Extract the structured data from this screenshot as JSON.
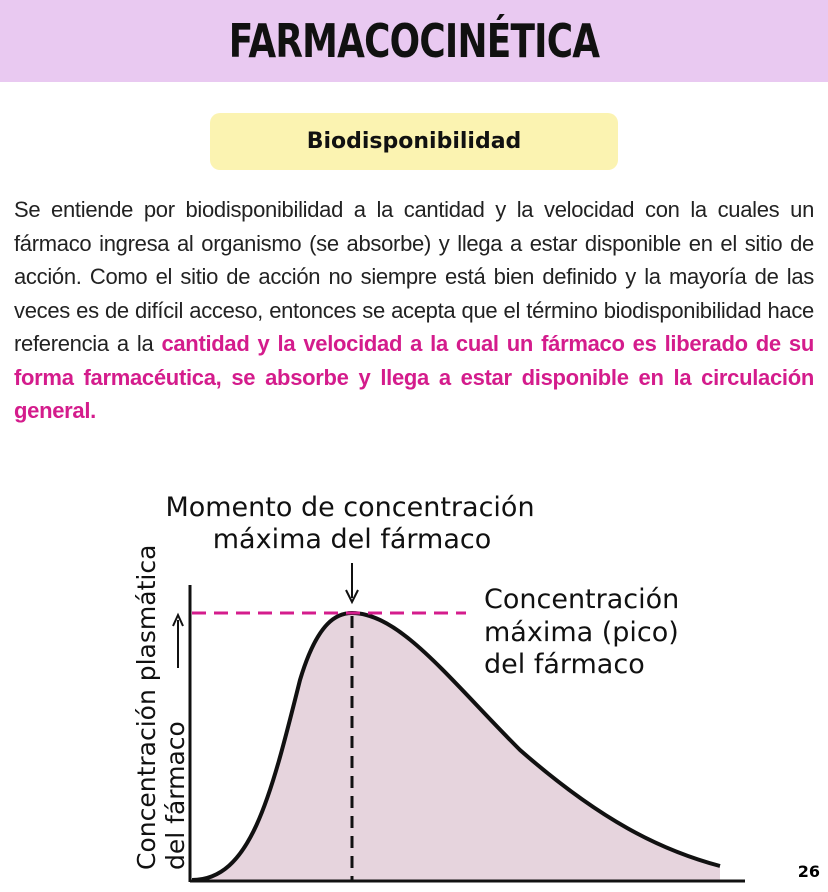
{
  "header": {
    "title": "FARMACOCINÉTICA"
  },
  "section": {
    "title": "Biodisponibilidad"
  },
  "paragraph": {
    "text": "Se entiende por biodisponibilidad a la cantidad y la velocidad con la cuales un fármaco ingresa al organismo (se absorbe) y llega a estar disponible en el sitio de acción. Como el sitio de acción no siempre está bien definido y la mayoría de las veces es de difícil acceso, entonces se acepta que el término biodisponibilidad hace referencia a la",
    "highlight": "cantidad y la velocidad a la cual un fármaco es liberado de su forma farmacéutica, se absorbe y llega a estar disponible en la circulación general."
  },
  "figure": {
    "peak_moment": [
      "Momento de concentración",
      "máxima del fármaco"
    ],
    "peak_label": [
      "Concentración",
      "máxima (pico)",
      "del fármaco"
    ],
    "y_label": [
      "Concentración plasmática",
      "del fármaco"
    ]
  },
  "page_number": "26"
}
